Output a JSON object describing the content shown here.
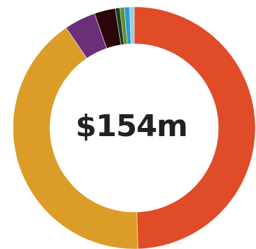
{
  "chart_data": {
    "type": "pie",
    "title": "",
    "center_label": "$154m",
    "slices": [
      {
        "value": 49.5,
        "color": "#e04b28"
      },
      {
        "value": 41.0,
        "color": "#dc9d28"
      },
      {
        "value": 4.2,
        "color": "#6b2f7a"
      },
      {
        "value": 2.8,
        "color": "#2a0608"
      },
      {
        "value": 0.6,
        "color": "#1f3d1c"
      },
      {
        "value": 0.6,
        "color": "#5f8f2e"
      },
      {
        "value": 0.7,
        "color": "#2e9ad0"
      },
      {
        "value": 0.6,
        "color": "#8fd0e8"
      }
    ]
  }
}
